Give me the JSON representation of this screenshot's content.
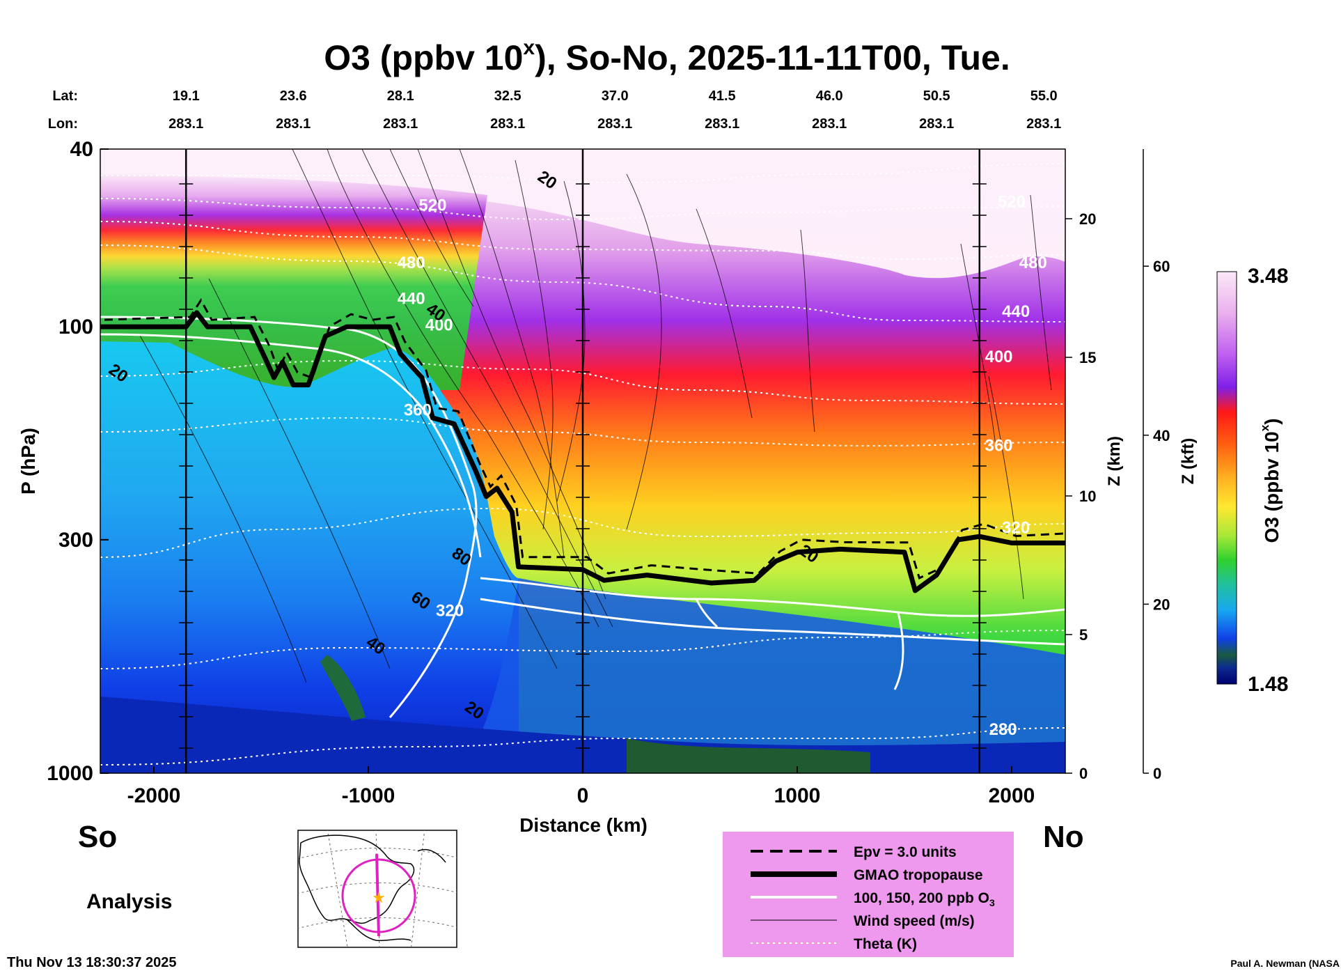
{
  "chart_data": {
    "type": "heatmap",
    "title": {
      "prefix": "O3 (ppbv 10",
      "sup": "x",
      "suffix": "), So-No, 2025-11-11T00, Tue."
    },
    "xlabel": "Distance (km)",
    "ylabel": "P (hPa)",
    "right_axis_km_label": "Z (km)",
    "right_axis_kft_label": "Z (kft)",
    "colorbar_label": {
      "prefix": "O3 (ppbv 10",
      "sup": "x",
      "suffix": ")"
    },
    "colorbar_range": [
      1.48,
      3.48
    ],
    "colorbar_max_label": "3.48",
    "colorbar_min_label": "1.48",
    "xlim": [
      -2250,
      2250
    ],
    "x_ticks": [
      {
        "v": -2000,
        "label": "-2000"
      },
      {
        "v": -1000,
        "label": "-1000"
      },
      {
        "v": 0,
        "label": "0"
      },
      {
        "v": 1000,
        "label": "1000"
      },
      {
        "v": 2000,
        "label": "2000"
      }
    ],
    "ylim_hpa": [
      40,
      1000
    ],
    "y_ticks_hpa": [
      {
        "v": 40,
        "label": "40"
      },
      {
        "v": 100,
        "label": "100"
      },
      {
        "v": 300,
        "label": "300"
      },
      {
        "v": 1000,
        "label": "1000"
      }
    ],
    "z_km_ticks": [
      {
        "v": 0,
        "label": "0"
      },
      {
        "v": 5,
        "label": "5"
      },
      {
        "v": 10,
        "label": "10"
      },
      {
        "v": 15,
        "label": "15"
      },
      {
        "v": 20,
        "label": "20"
      }
    ],
    "z_kft_ticks": [
      {
        "v": 0,
        "label": "0"
      },
      {
        "v": 20,
        "label": "20"
      },
      {
        "v": 40,
        "label": "40"
      },
      {
        "v": 60,
        "label": "60"
      }
    ],
    "lat_label": "Lat:",
    "lon_label": "Lon:",
    "lat_lon_positions": [
      {
        "dist": -1850,
        "lat": "19.1",
        "lon": "283.1"
      },
      {
        "dist": -1350,
        "lat": "23.6",
        "lon": "283.1"
      },
      {
        "dist": -850,
        "lat": "28.1",
        "lon": "283.1"
      },
      {
        "dist": -350,
        "lat": "32.5",
        "lon": "283.1"
      },
      {
        "dist": 150,
        "lat": "37.0",
        "lon": "283.1"
      },
      {
        "dist": 650,
        "lat": "41.5",
        "lon": "283.1"
      },
      {
        "dist": 1150,
        "lat": "46.0",
        "lon": "283.1"
      },
      {
        "dist": 1650,
        "lat": "50.5",
        "lon": "283.1"
      },
      {
        "dist": 2150,
        "lat": "55.0",
        "lon": "283.1"
      }
    ],
    "vertical_markers_km": [
      -1850,
      0,
      1850
    ],
    "tropopause_hpa": [
      {
        "x": -2250,
        "p": 100
      },
      {
        "x": -1850,
        "p": 100
      },
      {
        "x": -1800,
        "p": 93
      },
      {
        "x": -1750,
        "p": 100
      },
      {
        "x": -1550,
        "p": 100
      },
      {
        "x": -1480,
        "p": 118
      },
      {
        "x": -1440,
        "p": 130
      },
      {
        "x": -1400,
        "p": 120
      },
      {
        "x": -1350,
        "p": 135
      },
      {
        "x": -1280,
        "p": 135
      },
      {
        "x": -1200,
        "p": 105
      },
      {
        "x": -1100,
        "p": 100
      },
      {
        "x": -1000,
        "p": 100
      },
      {
        "x": -900,
        "p": 100
      },
      {
        "x": -850,
        "p": 115
      },
      {
        "x": -750,
        "p": 130
      },
      {
        "x": -700,
        "p": 160
      },
      {
        "x": -600,
        "p": 165
      },
      {
        "x": -500,
        "p": 210
      },
      {
        "x": -450,
        "p": 240
      },
      {
        "x": -400,
        "p": 230
      },
      {
        "x": -330,
        "p": 260
      },
      {
        "x": -300,
        "p": 345
      },
      {
        "x": 0,
        "p": 350
      },
      {
        "x": 100,
        "p": 370
      },
      {
        "x": 300,
        "p": 360
      },
      {
        "x": 600,
        "p": 375
      },
      {
        "x": 800,
        "p": 370
      },
      {
        "x": 900,
        "p": 335
      },
      {
        "x": 1000,
        "p": 320
      },
      {
        "x": 1200,
        "p": 315
      },
      {
        "x": 1500,
        "p": 320
      },
      {
        "x": 1550,
        "p": 390
      },
      {
        "x": 1650,
        "p": 360
      },
      {
        "x": 1750,
        "p": 300
      },
      {
        "x": 1850,
        "p": 295
      },
      {
        "x": 2000,
        "p": 305
      },
      {
        "x": 2250,
        "p": 305
      }
    ],
    "theta_labels": [
      {
        "x": -700,
        "p": 55,
        "label": "520"
      },
      {
        "x": -800,
        "p": 74,
        "label": "480"
      },
      {
        "x": -800,
        "p": 89,
        "label": "440"
      },
      {
        "x": -670,
        "p": 102,
        "label": "400"
      },
      {
        "x": -770,
        "p": 158,
        "label": "360"
      },
      {
        "x": -620,
        "p": 445,
        "label": "320"
      },
      {
        "x": 2000,
        "p": 54,
        "label": "520"
      },
      {
        "x": 2100,
        "p": 74,
        "label": "480"
      },
      {
        "x": 2020,
        "p": 95,
        "label": "440"
      },
      {
        "x": 1940,
        "p": 120,
        "label": "400"
      },
      {
        "x": 1940,
        "p": 190,
        "label": "360"
      },
      {
        "x": 2020,
        "p": 290,
        "label": "320"
      },
      {
        "x": 1960,
        "p": 820,
        "label": "280"
      }
    ],
    "wind_labels": [
      {
        "x": -2180,
        "p": 130,
        "label": "20"
      },
      {
        "x": -180,
        "p": 48,
        "label": "20"
      },
      {
        "x": -700,
        "p": 95,
        "label": "40"
      },
      {
        "x": -580,
        "p": 335,
        "label": "80"
      },
      {
        "x": -770,
        "p": 420,
        "label": "60"
      },
      {
        "x": -980,
        "p": 530,
        "label": "40"
      },
      {
        "x": -520,
        "p": 740,
        "label": "20"
      },
      {
        "x": 1040,
        "p": 330,
        "label": "20"
      }
    ],
    "left_label": "So",
    "right_label": "No",
    "analysis_label": "Analysis",
    "timestamp": "Thu Nov 13 18:30:37 2025",
    "credit": "Paul A. Newman (NASA",
    "legend": [
      {
        "style": "dashed",
        "label": "Epv = 3.0 units"
      },
      {
        "style": "thick",
        "label": "GMAO tropopause"
      },
      {
        "style": "white",
        "label": "100, 150, 200 ppb O"
      },
      {
        "style": "thin",
        "label": "Wind speed (m/s)"
      },
      {
        "style": "dotted",
        "label": "Theta (K)"
      }
    ],
    "legend_o3_sub": "3"
  },
  "colors": {
    "legend_bg": "#ee99ee",
    "map_track": "#e020c0",
    "map_star": "#ffb000"
  }
}
